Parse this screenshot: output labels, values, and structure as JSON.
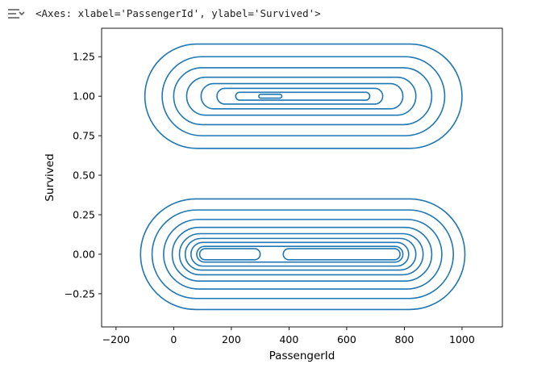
{
  "output": {
    "icon": "output-expand-icon",
    "text": "<Axes: xlabel='PassengerId', ylabel='Survived'>"
  },
  "chart_data": {
    "type": "kde-contour",
    "title": "",
    "xlabel": "PassengerId",
    "ylabel": "Survived",
    "xlim": [
      -250,
      1140
    ],
    "ylim": [
      -0.46,
      1.43
    ],
    "xticks": [
      -200,
      0,
      200,
      400,
      600,
      800,
      1000
    ],
    "xtick_labels": [
      "−200",
      "0",
      "200",
      "400",
      "600",
      "800",
      "1000"
    ],
    "yticks": [
      -0.25,
      0,
      0.25,
      0.5,
      0.75,
      1.0,
      1.25
    ],
    "ytick_labels": [
      "−0.25",
      "0.00",
      "0.25",
      "0.50",
      "0.75",
      "1.00",
      "1.25"
    ],
    "line_color": "#1f77b4",
    "grid": false,
    "contour_groups": [
      {
        "y_center": 1.0,
        "rings": [
          {
            "x": [
              -100,
              1000
            ],
            "y_half": 0.33
          },
          {
            "x": [
              -40,
              940
            ],
            "y_half": 0.25
          },
          {
            "x": [
              0,
              895
            ],
            "y_half": 0.18
          },
          {
            "x": [
              45,
              840
            ],
            "y_half": 0.12
          },
          {
            "x": [
              95,
              795
            ],
            "y_half": 0.08
          },
          {
            "x": [
              150,
              725
            ],
            "y_half": 0.05
          },
          {
            "x": [
              215,
              680
            ],
            "y_half": 0.025
          },
          {
            "x": [
              295,
              375
            ],
            "y_half": 0.012
          }
        ]
      },
      {
        "y_center": 0.0,
        "rings": [
          {
            "x": [
              -115,
              1010
            ],
            "y_half": 0.35
          },
          {
            "x": [
              -75,
              970
            ],
            "y_half": 0.28
          },
          {
            "x": [
              -35,
              930
            ],
            "y_half": 0.22
          },
          {
            "x": [
              -5,
              895
            ],
            "y_half": 0.17
          },
          {
            "x": [
              20,
              865
            ],
            "y_half": 0.13
          },
          {
            "x": [
              40,
              840
            ],
            "y_half": 0.1
          },
          {
            "x": [
              60,
              815
            ],
            "y_half": 0.075
          },
          {
            "x": [
              80,
              795
            ],
            "y_half": 0.05
          }
        ],
        "inner_lobes": [
          {
            "x": [
              90,
              300
            ],
            "y_half": 0.035
          },
          {
            "x": [
              380,
              785
            ],
            "y_half": 0.035
          }
        ]
      }
    ]
  }
}
